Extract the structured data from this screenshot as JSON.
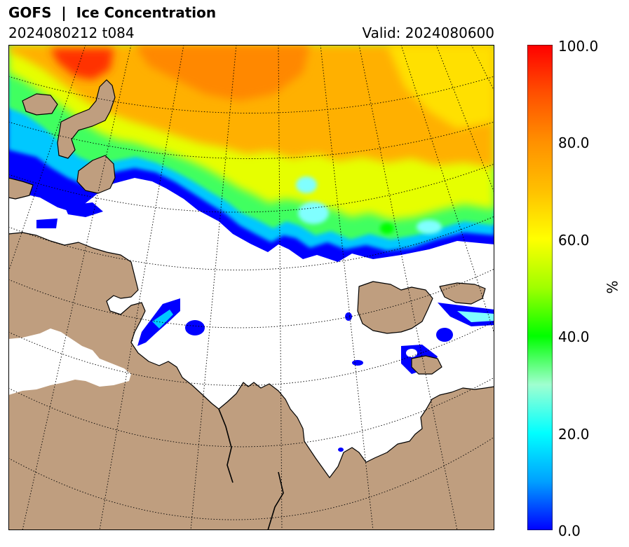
{
  "header": {
    "title": "GOFS  |  Ice Concentration",
    "run": "2024080212 t084",
    "valid": "Valid: 2024080600"
  },
  "colorbar": {
    "unit": "%",
    "ticks": [
      "100.0",
      "80.0",
      "60.0",
      "40.0",
      "20.0",
      "0.0"
    ],
    "range": [
      0,
      100
    ],
    "stops": [
      {
        "value": 0,
        "color": "#0000ff"
      },
      {
        "value": 10,
        "color": "#00a0ff"
      },
      {
        "value": 20,
        "color": "#00ffff"
      },
      {
        "value": 30,
        "color": "#a0ffd0"
      },
      {
        "value": 40,
        "color": "#00ff00"
      },
      {
        "value": 50,
        "color": "#a0ff00"
      },
      {
        "value": 60,
        "color": "#ffff00"
      },
      {
        "value": 70,
        "color": "#ffc000"
      },
      {
        "value": 80,
        "color": "#ff9000"
      },
      {
        "value": 90,
        "color": "#ff5000"
      },
      {
        "value": 100,
        "color": "#ff0000"
      }
    ]
  },
  "map": {
    "land_color": "#bf9e7f",
    "ocean_color": "#ffffff",
    "coastline_color": "#000000",
    "graticule": "dotted"
  }
}
